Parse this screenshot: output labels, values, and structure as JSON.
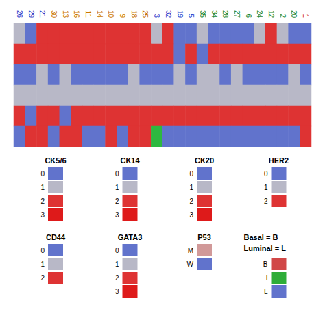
{
  "chart_data": {
    "type": "heatmap",
    "categories": [
      "26",
      "29",
      "21",
      "30",
      "13",
      "16",
      "11",
      "14",
      "10",
      "9",
      "18",
      "25",
      "3",
      "32",
      "19",
      "5",
      "35",
      "34",
      "28",
      "27",
      "6",
      "24",
      "12",
      "2",
      "20",
      "1"
    ],
    "category_colors": [
      "#3344cc",
      "#3344cc",
      "#3344cc",
      "#cc7700",
      "#cc7700",
      "#cc7700",
      "#cc7700",
      "#cc7700",
      "#cc7700",
      "#cc7700",
      "#cc7700",
      "#cc7700",
      "#3344cc",
      "#3344cc",
      "#3344cc",
      "#3344cc",
      "#228833",
      "#228833",
      "#228833",
      "#228833",
      "#228833",
      "#228833",
      "#228833",
      "#228833",
      "#228833",
      "#cc2222"
    ],
    "cells": [
      [
        1,
        0,
        2,
        2,
        2,
        2,
        2,
        2,
        2,
        2,
        2,
        2,
        1,
        2,
        0,
        0,
        1,
        0,
        0,
        0,
        0,
        1,
        2,
        1,
        0,
        0
      ],
      [
        2,
        2,
        2,
        2,
        2,
        2,
        2,
        2,
        2,
        2,
        2,
        2,
        2,
        2,
        0,
        2,
        0,
        2,
        2,
        2,
        2,
        2,
        2,
        2,
        2,
        2
      ],
      [
        0,
        0,
        1,
        0,
        1,
        0,
        0,
        0,
        0,
        0,
        1,
        0,
        0,
        0,
        1,
        0,
        1,
        1,
        0,
        1,
        0,
        0,
        0,
        0,
        1,
        0
      ],
      [
        1,
        1,
        1,
        1,
        1,
        1,
        1,
        1,
        1,
        1,
        1,
        1,
        1,
        1,
        1,
        1,
        1,
        1,
        1,
        1,
        1,
        1,
        1,
        1,
        1,
        1
      ],
      [
        2,
        0,
        2,
        2,
        0,
        2,
        2,
        2,
        2,
        2,
        2,
        2,
        2,
        2,
        2,
        2,
        2,
        2,
        2,
        2,
        2,
        2,
        2,
        2,
        2,
        2
      ],
      [
        0,
        2,
        2,
        0,
        2,
        2,
        0,
        0,
        2,
        0,
        2,
        2,
        2,
        0,
        0,
        0,
        0,
        0,
        0,
        0,
        0,
        0,
        0,
        0,
        0,
        2
      ]
    ],
    "color_scale": [
      {
        "value": 0,
        "color": "#6173cc"
      },
      {
        "value": 1,
        "color": "#b8b8c7"
      },
      {
        "value": 2,
        "color": "#de3333"
      },
      {
        "value": 3,
        "color": "#de1a1a"
      }
    ],
    "highlight": [
      {
        "row": 5,
        "column": 12,
        "color": "#2eb840"
      }
    ],
    "tick_labels": "x",
    "legend_blocks": [
      {
        "title": "CK5/6",
        "levels": [
          "0",
          "1",
          "2",
          "3"
        ],
        "colors": [
          "#6173cc",
          "#b8b8c7",
          "#de3333",
          "#de1a1a"
        ]
      },
      {
        "title": "CK14",
        "levels": [
          "0",
          "1",
          "2",
          "3"
        ],
        "colors": [
          "#6173cc",
          "#b8b8c7",
          "#de3333",
          "#de1a1a"
        ]
      },
      {
        "title": "CK20",
        "levels": [
          "0",
          "1",
          "2",
          "3"
        ],
        "colors": [
          "#6173cc",
          "#b8b8c7",
          "#de3333",
          "#de1a1a"
        ]
      },
      {
        "title": "HER2",
        "levels": [
          "0",
          "1",
          "2"
        ],
        "colors": [
          "#6173cc",
          "#b8b8c7",
          "#de3333"
        ]
      },
      {
        "title": "CD44",
        "levels": [
          "0",
          "1",
          "2"
        ],
        "colors": [
          "#6173cc",
          "#b8b8c7",
          "#de3333"
        ]
      },
      {
        "title": "GATA3",
        "levels": [
          "0",
          "1",
          "2",
          "3"
        ],
        "colors": [
          "#6173cc",
          "#b8b8c7",
          "#de3333",
          "#de1a1a"
        ]
      },
      {
        "title": "P53",
        "levels": [
          "M",
          "W"
        ],
        "colors": [
          "#d19999",
          "#6173cc"
        ]
      },
      {
        "levels": [
          "B",
          "I",
          "L"
        ],
        "colors": [
          "#d14747",
          "#2ead38",
          "#6173cc"
        ]
      }
    ],
    "annotations": [
      "Basal = B",
      "Luminal = L"
    ]
  }
}
